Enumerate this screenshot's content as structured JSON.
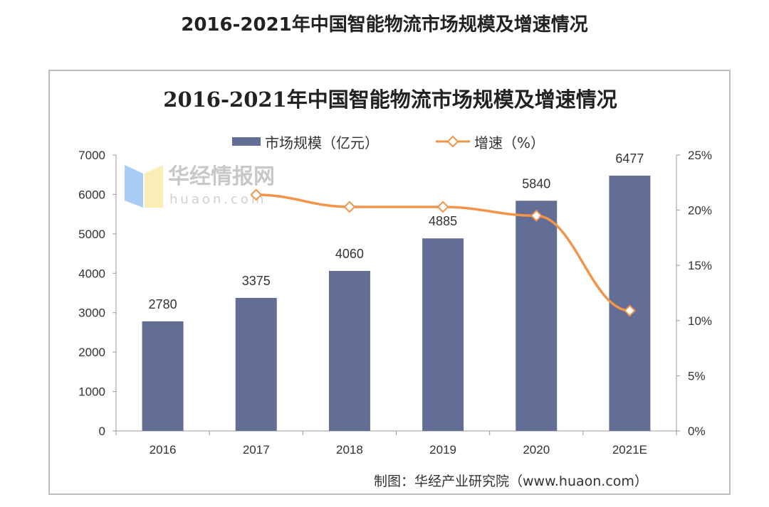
{
  "page_title": "2016-2021年中国智能物流市场规模及增速情况",
  "source": "制图：华经产业研究院（www.huaon.com）",
  "watermark": {
    "main": "华经情报网",
    "sub": "huaon.com"
  },
  "chart_data": {
    "type": "bar+line",
    "title": "2016-2021年中国智能物流市场规模及增速情况",
    "categories": [
      "2016",
      "2017",
      "2018",
      "2019",
      "2020",
      "2021E"
    ],
    "series": [
      {
        "name": "市场规模（亿元）",
        "type": "bar",
        "axis": "left",
        "color": "#636e97",
        "values": [
          2780,
          3375,
          4060,
          4885,
          5840,
          6477
        ]
      },
      {
        "name": "增速（%）",
        "type": "line",
        "axis": "right",
        "color": "#f0954a",
        "values": [
          null,
          21.4,
          20.3,
          20.3,
          19.5,
          10.9
        ]
      }
    ],
    "y_left": {
      "range": [
        0,
        7000
      ],
      "ticks": [
        "0",
        "1000",
        "2000",
        "3000",
        "4000",
        "5000",
        "6000",
        "7000"
      ]
    },
    "y_right": {
      "range": [
        0,
        25
      ],
      "ticks": [
        "0%",
        "5%",
        "10%",
        "15%",
        "20%",
        "25%"
      ]
    },
    "legend_position": "top",
    "grid": false
  }
}
